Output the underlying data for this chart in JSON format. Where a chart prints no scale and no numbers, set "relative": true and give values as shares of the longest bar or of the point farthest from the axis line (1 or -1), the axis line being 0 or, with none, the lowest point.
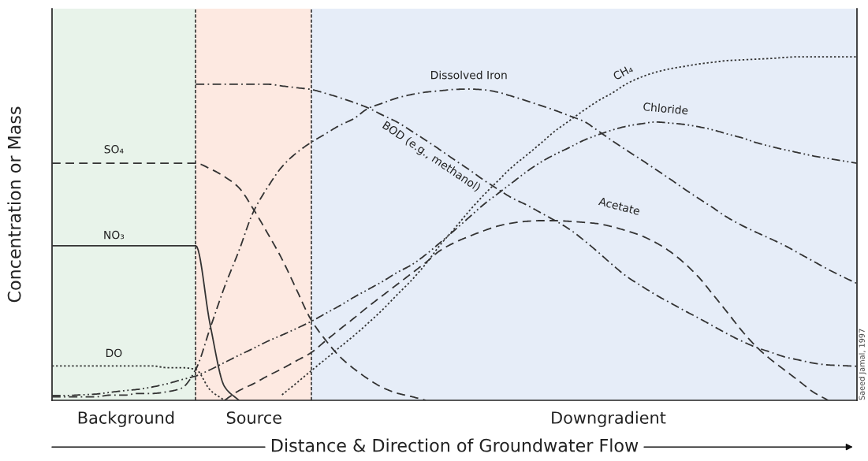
{
  "chart_data": {
    "type": "line",
    "relative": true,
    "xlabel": "Distance & Direction of Groundwater Flow",
    "ylabel": "Concentration or Mass",
    "categories": [
      null,
      null,
      null,
      null,
      null,
      null,
      null,
      null,
      null,
      null,
      null,
      null,
      null,
      null,
      null,
      null,
      null,
      null,
      null,
      null,
      null,
      null,
      null,
      null,
      null,
      null,
      null,
      null,
      null,
      null,
      null,
      null,
      null,
      null,
      null,
      null,
      null,
      null,
      null,
      null,
      null,
      null,
      null,
      null,
      null,
      null,
      null,
      null,
      null,
      null,
      null,
      null,
      null,
      null,
      null,
      null,
      null
    ],
    "series": [
      {
        "name": "SO₄",
        "color": "#333333",
        "line_style": "dashed",
        "values": [
          0.69,
          0.69,
          0.69,
          0.69,
          0.69,
          0.69,
          0.69,
          0.69,
          0.69,
          0.69,
          0.69,
          0.674,
          0.651,
          0.619,
          0.557,
          0.486,
          0.411,
          0.323,
          0.236,
          0.177,
          0.128,
          0.092,
          0.062,
          0.037,
          0.021,
          0.011,
          0,
          null,
          null,
          null,
          null,
          null,
          null,
          null,
          null,
          null,
          null,
          null,
          null,
          null,
          null,
          null,
          null,
          null,
          null,
          null,
          null,
          null,
          null,
          null,
          null,
          null,
          null,
          null,
          null,
          null,
          null
        ]
      },
      {
        "name": "NO₃",
        "color": "#333333",
        "line_style": "solid",
        "values": [
          0.45,
          0.45,
          0.45,
          0.45,
          0.45,
          0.45,
          0.45,
          0.45,
          0.45,
          0.45,
          0.45,
          0.22,
          0.04,
          0,
          null,
          null,
          null,
          null,
          null,
          null,
          null,
          null,
          null,
          null,
          null,
          null,
          null,
          null,
          null,
          null,
          null,
          null,
          null,
          null,
          null,
          null,
          null,
          null,
          null,
          null,
          null,
          null,
          null,
          null,
          null,
          null,
          null,
          null,
          null,
          null,
          null,
          null,
          null,
          null,
          null,
          null,
          null
        ]
      },
      {
        "name": "DO",
        "color": "#333333",
        "line_style": "dotted",
        "values": [
          0.1,
          0.1,
          0.1,
          0.1,
          0.1,
          0.1,
          0.1,
          0.1,
          0.095,
          0.095,
          0.09,
          0.03,
          0,
          null,
          null,
          null,
          null,
          null,
          null,
          null,
          null,
          null,
          null,
          null,
          null,
          null,
          null,
          null,
          null,
          null,
          null,
          null,
          null,
          null,
          null,
          null,
          null,
          null,
          null,
          null,
          null,
          null,
          null,
          null,
          null,
          null,
          null,
          null,
          null,
          null,
          null,
          null,
          null,
          null,
          null,
          null,
          null
        ]
      },
      {
        "name": "Dissolved Iron",
        "color": "#333333",
        "line_style": "dashdot",
        "values": [
          0.01,
          0.01,
          0.01,
          0.01,
          0.015,
          0.015,
          0.02,
          0.02,
          0.025,
          0.035,
          0.09,
          0.21,
          0.33,
          0.435,
          0.548,
          0.62,
          0.68,
          0.72,
          0.75,
          0.775,
          0.8,
          0.82,
          0.85,
          0.865,
          0.88,
          0.89,
          0.897,
          0.901,
          0.905,
          0.906,
          0.904,
          0.897,
          0.885,
          0.872,
          0.858,
          0.844,
          0.828,
          0.812,
          0.784,
          0.755,
          0.727,
          0.7,
          0.672,
          0.644,
          0.615,
          0.587,
          0.56,
          0.532,
          0.509,
          0.489,
          0.47,
          0.45,
          0.427,
          0.404,
          0.381,
          0.36,
          0.34
        ]
      },
      {
        "name": "BOD (e.g., methanol)",
        "color": "#333333",
        "line_style": "dashdot",
        "values": [
          null,
          null,
          null,
          null,
          null,
          null,
          null,
          null,
          null,
          null,
          0.92,
          0.92,
          0.92,
          0.92,
          0.92,
          0.92,
          0.915,
          0.91,
          0.905,
          0.894,
          0.881,
          0.867,
          0.851,
          0.83,
          0.81,
          0.784,
          0.757,
          0.729,
          0.7,
          0.672,
          0.642,
          0.615,
          0.589,
          0.569,
          0.546,
          0.523,
          0.498,
          0.466,
          0.431,
          0.394,
          0.36,
          0.333,
          0.307,
          0.284,
          0.261,
          0.239,
          0.216,
          0.193,
          0.172,
          0.154,
          0.14,
          0.126,
          0.117,
          0.108,
          0.103,
          0.101,
          0.099
        ]
      },
      {
        "name": "CH₄",
        "color": "#333333",
        "line_style": "dotted",
        "values": [
          null,
          null,
          null,
          null,
          null,
          null,
          null,
          null,
          null,
          null,
          null,
          null,
          null,
          null,
          null,
          null,
          0.016,
          0.05,
          0.085,
          0.119,
          0.154,
          0.188,
          0.225,
          0.264,
          0.307,
          0.349,
          0.397,
          0.452,
          0.5,
          0.55,
          0.596,
          0.638,
          0.679,
          0.713,
          0.748,
          0.784,
          0.814,
          0.844,
          0.872,
          0.895,
          0.922,
          0.941,
          0.955,
          0.965,
          0.972,
          0.979,
          0.984,
          0.989,
          0.991,
          0.993,
          0.995,
          0.998,
          1,
          1,
          1,
          1,
          1
        ]
      },
      {
        "name": "Chloride",
        "color": "#333333",
        "line_style": "dashdotdot",
        "values": [
          0.014,
          0.014,
          0.016,
          0.018,
          0.023,
          0.028,
          0.032,
          0.039,
          0.048,
          0.06,
          0.071,
          0.089,
          0.11,
          0.131,
          0.151,
          0.172,
          0.19,
          0.209,
          0.229,
          0.252,
          0.275,
          0.3,
          0.323,
          0.346,
          0.372,
          0.394,
          0.424,
          0.459,
          0.495,
          0.532,
          0.569,
          0.601,
          0.633,
          0.665,
          0.693,
          0.716,
          0.736,
          0.757,
          0.773,
          0.787,
          0.798,
          0.805,
          0.81,
          0.807,
          0.803,
          0.796,
          0.787,
          0.775,
          0.764,
          0.75,
          0.739,
          0.729,
          0.72,
          0.711,
          0.704,
          0.697,
          0.69
        ]
      },
      {
        "name": "Acetate",
        "color": "#333333",
        "line_style": "dashed",
        "values": [
          null,
          null,
          null,
          null,
          null,
          null,
          null,
          null,
          null,
          null,
          null,
          null,
          0,
          0.028,
          0.048,
          0.071,
          0.092,
          0.115,
          0.138,
          0.172,
          0.206,
          0.239,
          0.273,
          0.305,
          0.337,
          0.369,
          0.401,
          0.436,
          0.459,
          0.477,
          0.493,
          0.507,
          0.516,
          0.521,
          0.523,
          0.523,
          0.521,
          0.518,
          0.514,
          0.505,
          0.493,
          0.479,
          0.459,
          0.433,
          0.399,
          0.358,
          0.307,
          0.255,
          0.202,
          0.156,
          0.119,
          0.087,
          0.055,
          0.023,
          0,
          null,
          null
        ]
      }
    ],
    "annotations": [
      "Background",
      "Source",
      "Downgradient",
      "Saeed Jamal, 1997"
    ],
    "tick_labels": false,
    "legend": false
  }
}
